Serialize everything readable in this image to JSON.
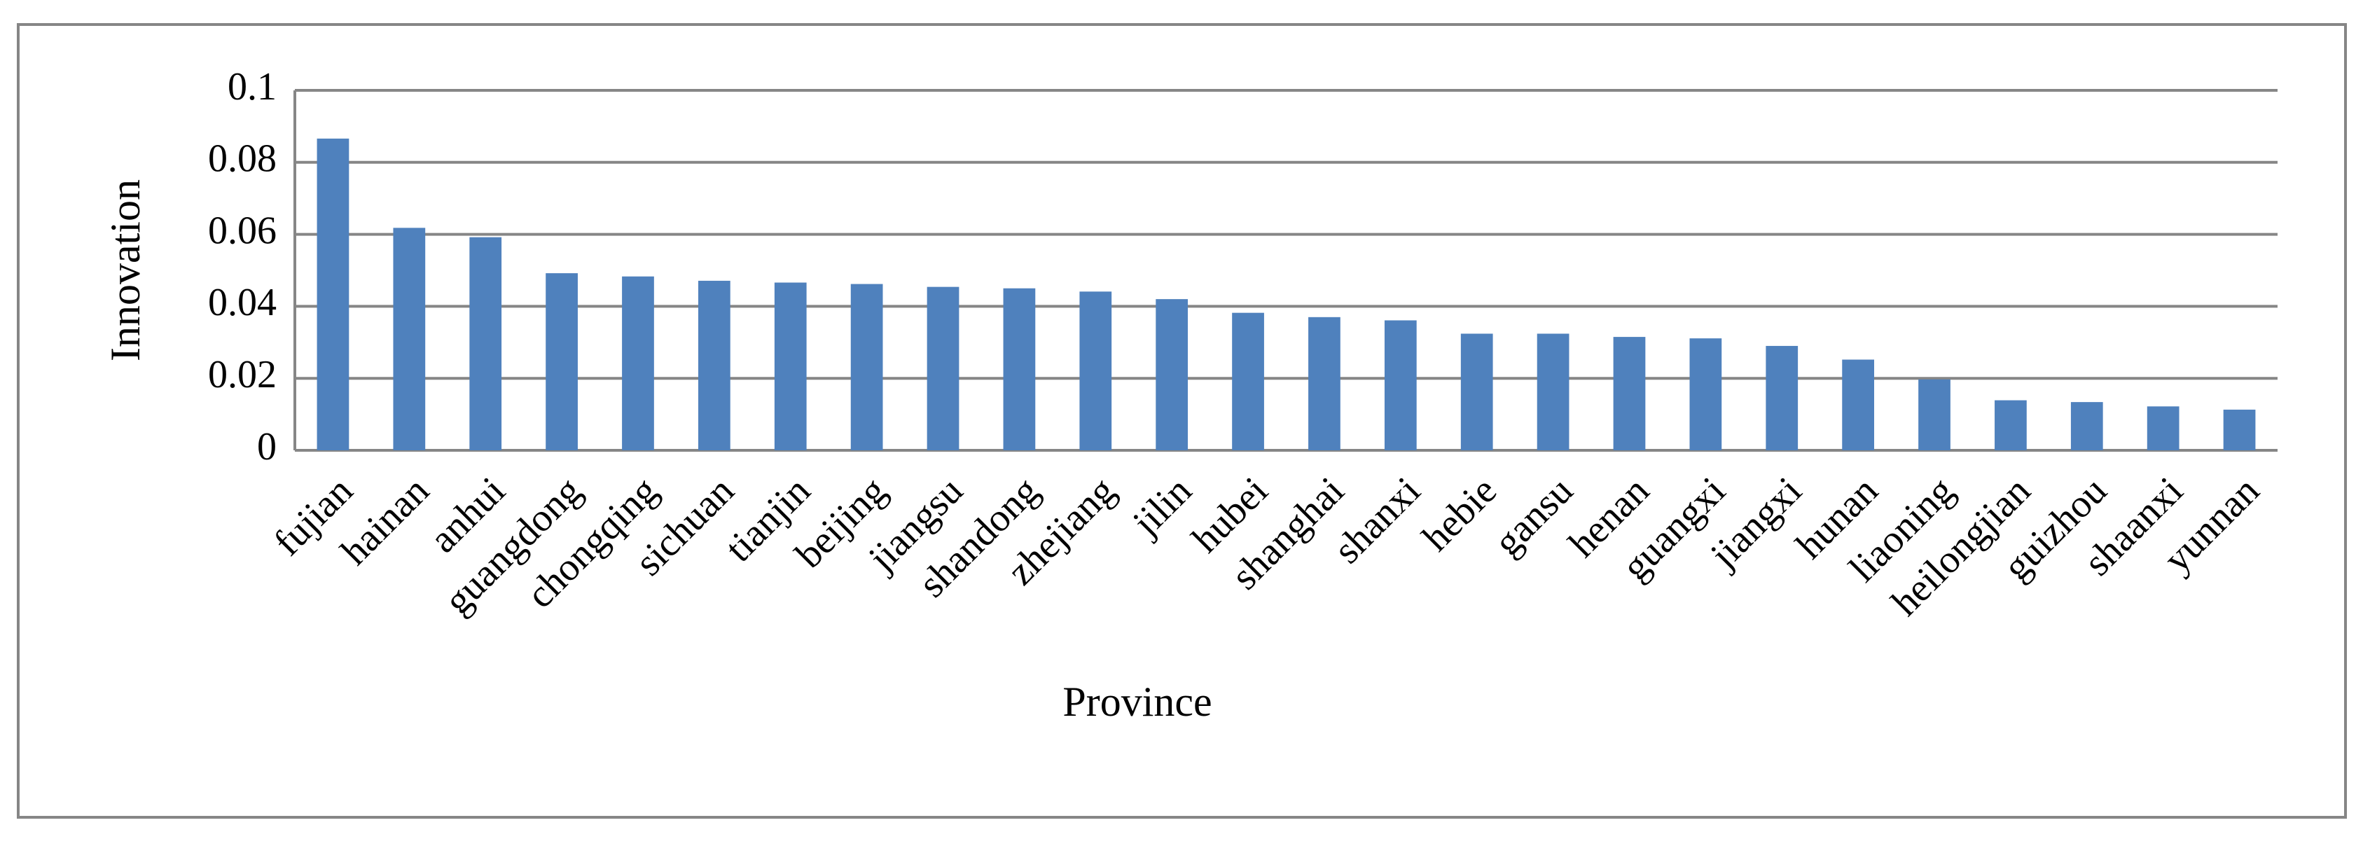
{
  "chart_data": {
    "type": "bar",
    "x_label": "Province",
    "y_label": "Innovation",
    "categories": [
      "fujian",
      "hainan",
      "anhui",
      "guangdong",
      "chongqing",
      "sichuan",
      "tianjin",
      "beijing",
      "jiangsu",
      "shandong",
      "zhejiang",
      "jilin",
      "hubei",
      "shanghai",
      "shanxi",
      "hebie",
      "gansu",
      "henan",
      "guangxi",
      "jiangxi",
      "hunan",
      "liaoning",
      "heilongjian",
      "guizhou",
      "shaanxi",
      "yunnan"
    ],
    "values": [
      0.0866,
      0.0618,
      0.0592,
      0.0492,
      0.0483,
      0.0471,
      0.0466,
      0.0462,
      0.0454,
      0.045,
      0.0441,
      0.042,
      0.0382,
      0.037,
      0.0361,
      0.0324,
      0.0324,
      0.0315,
      0.0311,
      0.029,
      0.0252,
      0.0197,
      0.0139,
      0.0134,
      0.0122,
      0.0113
    ],
    "color": "#4f81bd",
    "ylim": [
      0,
      0.1
    ],
    "yticks": [
      0,
      0.02,
      0.04,
      0.06,
      0.08,
      0.1
    ],
    "grid": true
  }
}
